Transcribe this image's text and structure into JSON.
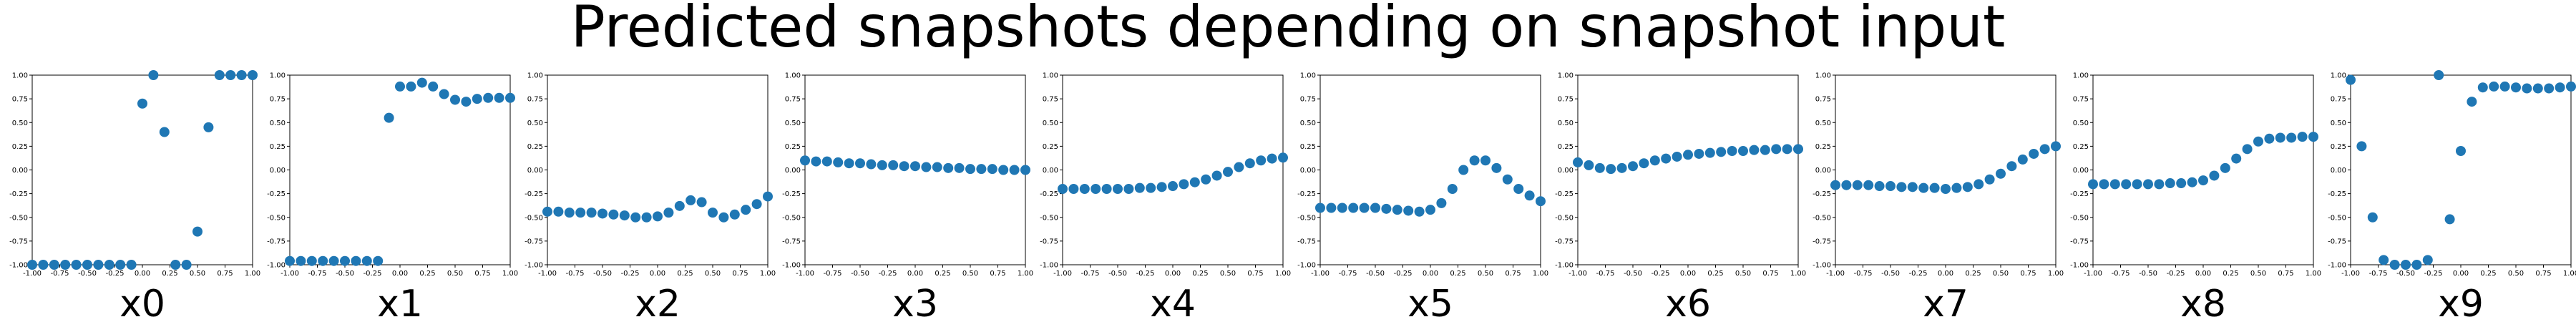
{
  "title": "Predicted snapshots depending on snapshot input",
  "chart_data": [
    {
      "type": "scatter",
      "xlabel": "x0",
      "xlim": [
        -1,
        1
      ],
      "ylim": [
        -1,
        1
      ],
      "x": [
        -1.0,
        -0.9,
        -0.8,
        -0.7,
        -0.6,
        -0.5,
        -0.4,
        -0.3,
        -0.2,
        -0.1,
        0.0,
        0.1,
        0.2,
        0.3,
        0.4,
        0.5,
        0.6,
        0.7,
        0.8,
        0.9,
        1.0
      ],
      "y": [
        -1.0,
        -1.0,
        -1.0,
        -1.0,
        -1.0,
        -1.0,
        -1.0,
        -1.0,
        -1.0,
        -1.0,
        0.7,
        1.0,
        0.4,
        -1.0,
        -1.0,
        -0.65,
        0.45,
        1.0,
        1.0,
        1.0,
        1.0
      ]
    },
    {
      "type": "scatter",
      "xlabel": "x1",
      "xlim": [
        -1,
        1
      ],
      "ylim": [
        -1,
        1
      ],
      "x": [
        -1.0,
        -0.9,
        -0.8,
        -0.7,
        -0.6,
        -0.5,
        -0.4,
        -0.3,
        -0.2,
        -0.1,
        0.0,
        0.1,
        0.2,
        0.3,
        0.4,
        0.5,
        0.6,
        0.7,
        0.8,
        0.9,
        1.0
      ],
      "y": [
        -0.96,
        -0.96,
        -0.96,
        -0.96,
        -0.96,
        -0.96,
        -0.96,
        -0.96,
        -0.96,
        0.55,
        0.88,
        0.88,
        0.92,
        0.88,
        0.8,
        0.74,
        0.72,
        0.75,
        0.76,
        0.76,
        0.76
      ]
    },
    {
      "type": "scatter",
      "xlabel": "x2",
      "xlim": [
        -1,
        1
      ],
      "ylim": [
        -1,
        1
      ],
      "x": [
        -1.0,
        -0.9,
        -0.8,
        -0.7,
        -0.6,
        -0.5,
        -0.4,
        -0.3,
        -0.2,
        -0.1,
        0.0,
        0.1,
        0.2,
        0.3,
        0.4,
        0.5,
        0.6,
        0.7,
        0.8,
        0.9,
        1.0
      ],
      "y": [
        -0.44,
        -0.44,
        -0.45,
        -0.45,
        -0.45,
        -0.46,
        -0.47,
        -0.48,
        -0.5,
        -0.5,
        -0.49,
        -0.45,
        -0.38,
        -0.32,
        -0.34,
        -0.45,
        -0.5,
        -0.47,
        -0.42,
        -0.36,
        -0.28
      ]
    },
    {
      "type": "scatter",
      "xlabel": "x3",
      "xlim": [
        -1,
        1
      ],
      "ylim": [
        -1,
        1
      ],
      "x": [
        -1.0,
        -0.9,
        -0.8,
        -0.7,
        -0.6,
        -0.5,
        -0.4,
        -0.3,
        -0.2,
        -0.1,
        0.0,
        0.1,
        0.2,
        0.3,
        0.4,
        0.5,
        0.6,
        0.7,
        0.8,
        0.9,
        1.0
      ],
      "y": [
        0.1,
        0.09,
        0.09,
        0.08,
        0.07,
        0.07,
        0.06,
        0.05,
        0.05,
        0.04,
        0.04,
        0.03,
        0.03,
        0.02,
        0.02,
        0.01,
        0.01,
        0.01,
        0.0,
        0.0,
        0.0
      ]
    },
    {
      "type": "scatter",
      "xlabel": "x4",
      "xlim": [
        -1,
        1
      ],
      "ylim": [
        -1,
        1
      ],
      "x": [
        -1.0,
        -0.9,
        -0.8,
        -0.7,
        -0.6,
        -0.5,
        -0.4,
        -0.3,
        -0.2,
        -0.1,
        0.0,
        0.1,
        0.2,
        0.3,
        0.4,
        0.5,
        0.6,
        0.7,
        0.8,
        0.9,
        1.0
      ],
      "y": [
        -0.2,
        -0.2,
        -0.2,
        -0.2,
        -0.2,
        -0.2,
        -0.2,
        -0.19,
        -0.19,
        -0.18,
        -0.17,
        -0.15,
        -0.13,
        -0.1,
        -0.06,
        -0.02,
        0.03,
        0.07,
        0.1,
        0.12,
        0.13
      ]
    },
    {
      "type": "scatter",
      "xlabel": "x5",
      "xlim": [
        -1,
        1
      ],
      "ylim": [
        -1,
        1
      ],
      "x": [
        -1.0,
        -0.9,
        -0.8,
        -0.7,
        -0.6,
        -0.5,
        -0.4,
        -0.3,
        -0.2,
        -0.1,
        0.0,
        0.1,
        0.2,
        0.3,
        0.4,
        0.5,
        0.6,
        0.7,
        0.8,
        0.9,
        1.0
      ],
      "y": [
        -0.4,
        -0.4,
        -0.4,
        -0.4,
        -0.4,
        -0.4,
        -0.41,
        -0.42,
        -0.43,
        -0.44,
        -0.42,
        -0.35,
        -0.2,
        0.0,
        0.1,
        0.1,
        0.02,
        -0.1,
        -0.2,
        -0.27,
        -0.33
      ]
    },
    {
      "type": "scatter",
      "xlabel": "x6",
      "xlim": [
        -1,
        1
      ],
      "ylim": [
        -1,
        1
      ],
      "x": [
        -1.0,
        -0.9,
        -0.8,
        -0.7,
        -0.6,
        -0.5,
        -0.4,
        -0.3,
        -0.2,
        -0.1,
        0.0,
        0.1,
        0.2,
        0.3,
        0.4,
        0.5,
        0.6,
        0.7,
        0.8,
        0.9,
        1.0
      ],
      "y": [
        0.08,
        0.05,
        0.02,
        0.01,
        0.02,
        0.04,
        0.07,
        0.1,
        0.12,
        0.14,
        0.16,
        0.17,
        0.18,
        0.19,
        0.2,
        0.2,
        0.21,
        0.21,
        0.22,
        0.22,
        0.22
      ]
    },
    {
      "type": "scatter",
      "xlabel": "x7",
      "xlim": [
        -1,
        1
      ],
      "ylim": [
        -1,
        1
      ],
      "x": [
        -1.0,
        -0.9,
        -0.8,
        -0.7,
        -0.6,
        -0.5,
        -0.4,
        -0.3,
        -0.2,
        -0.1,
        0.0,
        0.1,
        0.2,
        0.3,
        0.4,
        0.5,
        0.6,
        0.7,
        0.8,
        0.9,
        1.0
      ],
      "y": [
        -0.16,
        -0.16,
        -0.16,
        -0.16,
        -0.17,
        -0.17,
        -0.18,
        -0.18,
        -0.19,
        -0.19,
        -0.2,
        -0.19,
        -0.18,
        -0.15,
        -0.1,
        -0.04,
        0.04,
        0.11,
        0.17,
        0.22,
        0.25
      ]
    },
    {
      "type": "scatter",
      "xlabel": "x8",
      "xlim": [
        -1,
        1
      ],
      "ylim": [
        -1,
        1
      ],
      "x": [
        -1.0,
        -0.9,
        -0.8,
        -0.7,
        -0.6,
        -0.5,
        -0.4,
        -0.3,
        -0.2,
        -0.1,
        0.0,
        0.1,
        0.2,
        0.3,
        0.4,
        0.5,
        0.6,
        0.7,
        0.8,
        0.9,
        1.0
      ],
      "y": [
        -0.15,
        -0.15,
        -0.15,
        -0.15,
        -0.15,
        -0.15,
        -0.15,
        -0.14,
        -0.14,
        -0.13,
        -0.11,
        -0.06,
        0.02,
        0.12,
        0.22,
        0.3,
        0.33,
        0.34,
        0.34,
        0.35,
        0.35
      ]
    },
    {
      "type": "scatter",
      "xlabel": "x9",
      "xlim": [
        -1,
        1
      ],
      "ylim": [
        -1,
        1
      ],
      "x": [
        -1.0,
        -0.9,
        -0.8,
        -0.7,
        -0.6,
        -0.5,
        -0.4,
        -0.3,
        -0.2,
        -0.1,
        0.0,
        0.1,
        0.2,
        0.3,
        0.4,
        0.5,
        0.6,
        0.7,
        0.8,
        0.9,
        1.0
      ],
      "y": [
        0.95,
        0.25,
        -0.5,
        -0.95,
        -1.0,
        -1.0,
        -1.0,
        -0.95,
        1.0,
        -0.52,
        0.2,
        0.72,
        0.87,
        0.88,
        0.88,
        0.87,
        0.86,
        0.86,
        0.86,
        0.87,
        0.88
      ]
    }
  ]
}
